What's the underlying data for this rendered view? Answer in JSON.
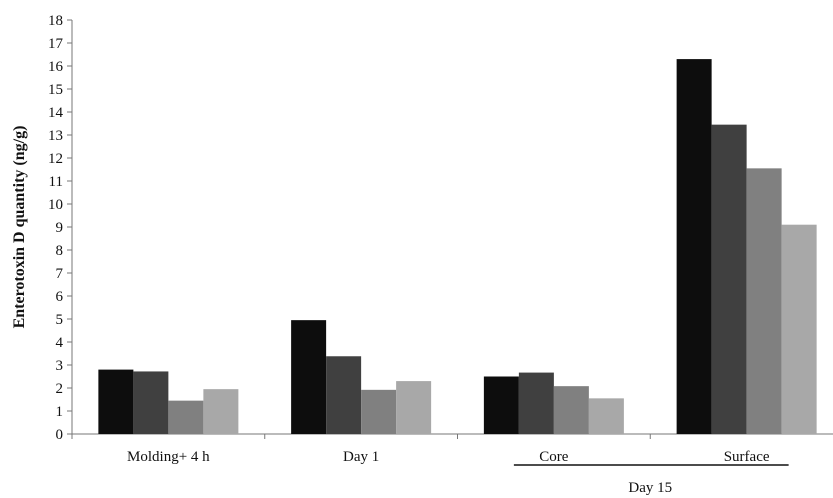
{
  "chart_data": {
    "type": "bar",
    "title": "",
    "xlabel": "",
    "ylabel": "Enterotoxin D quantity (ng/g)",
    "ylim": [
      0,
      18
    ],
    "ytick_step": 1,
    "grid": false,
    "legend": "none",
    "categories": [
      "Molding+ 4 h",
      "Day 1",
      "Core",
      "Surface"
    ],
    "group_labels": [
      {
        "label": "Day 15",
        "spans": [
          "Core",
          "Surface"
        ]
      }
    ],
    "series": [
      {
        "values": [
          2.8,
          4.95,
          2.5,
          16.3
        ],
        "color": "#0d0d0d"
      },
      {
        "values": [
          2.72,
          3.38,
          2.67,
          13.45
        ],
        "color": "#404040"
      },
      {
        "values": [
          1.45,
          1.92,
          2.08,
          11.55
        ],
        "color": "#808080"
      },
      {
        "values": [
          1.95,
          2.3,
          1.55,
          9.1
        ],
        "color": "#a8a8a8"
      }
    ]
  }
}
